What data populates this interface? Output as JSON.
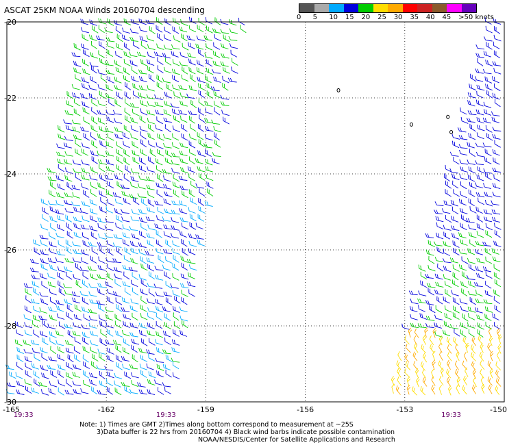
{
  "title": "ASCAT 25KM NOAA Winds 20160704 descending",
  "colorbar": {
    "colors": [
      "#555555",
      "#aaaaaa",
      "#00aaff",
      "#0000dd",
      "#00cc00",
      "#ffdd00",
      "#ffaa00",
      "#ff0000",
      "#cc2222",
      "#8b5a2b",
      "#ff00ff",
      "#6600bb"
    ],
    "labels": [
      "0",
      "5",
      "10",
      "15",
      "20",
      "25",
      "30",
      "35",
      "40",
      "45",
      ">50 knots"
    ],
    "label_values": [
      0,
      5,
      10,
      15,
      20,
      25,
      30,
      35,
      40,
      45,
      50
    ]
  },
  "map": {
    "lon_range": [
      -165,
      -150
    ],
    "lat_range": [
      -30,
      -20
    ],
    "lat_ticks": [
      -20,
      -22,
      -24,
      -26,
      -28,
      -30
    ],
    "lon_ticks": [
      -165,
      -162,
      -159,
      -156,
      -153,
      -150
    ],
    "lat_labels": [
      "-20",
      "-22",
      "-24",
      "-26",
      "-28",
      "-30"
    ],
    "lon_labels": [
      "-165",
      "-162",
      "-159",
      "-156",
      "-153",
      "-150"
    ],
    "grid": "dotted",
    "time_labels": [
      {
        "text": "19:33",
        "lon": -164.5
      },
      {
        "text": "19:33",
        "lon": -160.2
      },
      {
        "text": "19:33",
        "lon": -151.6
      }
    ],
    "swaths": [
      {
        "name": "west",
        "corners_lonlat": [
          [
            -162.6,
            -20
          ],
          [
            -157.7,
            -20
          ],
          [
            -159.9,
            -30
          ],
          [
            -165,
            -30
          ]
        ]
      },
      {
        "name": "east",
        "corners_lonlat": [
          [
            -150.4,
            -20
          ],
          [
            -150,
            -20
          ],
          [
            -150,
            -30
          ],
          [
            -153.5,
            -30
          ]
        ]
      }
    ],
    "islands_lonlat": [
      [
        -155.0,
        -21.8
      ],
      [
        -152.8,
        -22.7
      ],
      [
        -151.7,
        -22.5
      ],
      [
        -151.6,
        -22.9
      ]
    ]
  },
  "notes": {
    "line1": "Note: 1) Times are GMT 2)Times along bottom correspond to measurement at ~25S",
    "line2": "3)Data buffer is 22 hrs from 20160704 4) Black wind barbs indicate possible contamination",
    "line3": "NOAA/NESDIS/Center for Satellite Applications and Research"
  }
}
